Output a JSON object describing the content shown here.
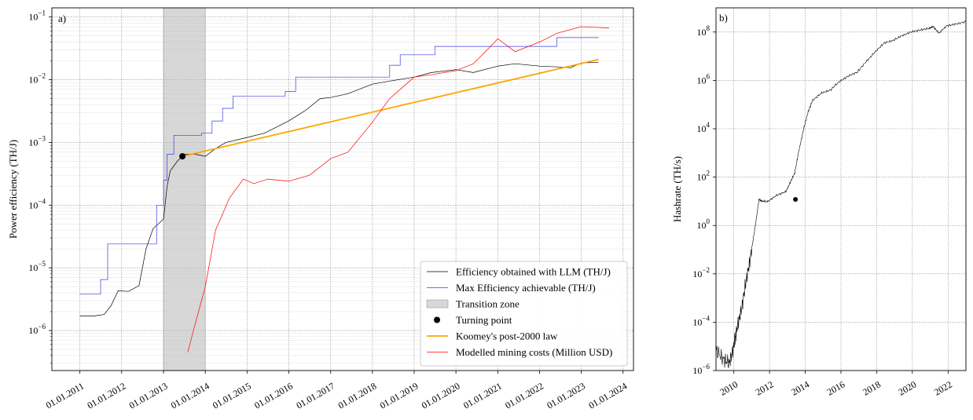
{
  "chart_data": [
    {
      "panel_label": "a)",
      "type": "line",
      "yscale": "log",
      "ylabel": "Power efficiency (TH/J)",
      "ylim": [
        2.3e-07,
        0.14
      ],
      "xlim": [
        "2010-05-01",
        "2024-04-01"
      ],
      "x_ticks": [
        "01.01.2011",
        "01.01.2012",
        "01.01.2013",
        "01.01.2014",
        "01.01.2015",
        "01.01.2016",
        "01.01.2017",
        "01.01.2018",
        "01.01.2019",
        "01.01.2020",
        "01.01.2021",
        "01.01.2022",
        "01.01.2023",
        "01.01.2024"
      ],
      "y_ticks": [
        {
          "value": 1e-06,
          "mantissa": "10",
          "exp": "−6"
        },
        {
          "value": 1e-05,
          "mantissa": "10",
          "exp": "−5"
        },
        {
          "value": 0.0001,
          "mantissa": "10",
          "exp": "−4"
        },
        {
          "value": 0.001,
          "mantissa": "10",
          "exp": "−3"
        },
        {
          "value": 0.01,
          "mantissa": "10",
          "exp": "−2"
        },
        {
          "value": 0.1,
          "mantissa": "10",
          "exp": "−1"
        }
      ],
      "grid": true,
      "transition_zone": [
        "2013-01-01",
        "2014-01-01"
      ],
      "turning_point": {
        "x": "2013-06-15",
        "y": 0.0006
      },
      "legend_position": "lower-right",
      "series": [
        {
          "name": "Efficiency obtained with LLM (TH/J)",
          "color": "#000000",
          "points": [
            [
              "2011-01-01",
              1.7e-06
            ],
            [
              "2011-05-01",
              1.7e-06
            ],
            [
              "2011-08-01",
              1.8e-06
            ],
            [
              "2011-10-01",
              2.5e-06
            ],
            [
              "2011-12-01",
              4.3e-06
            ],
            [
              "2012-03-01",
              4.2e-06
            ],
            [
              "2012-06-01",
              5.2e-06
            ],
            [
              "2012-08-01",
              2e-05
            ],
            [
              "2012-10-01",
              4.2e-05
            ],
            [
              "2013-01-01",
              6e-05
            ],
            [
              "2013-02-01",
              0.0002
            ],
            [
              "2013-03-01",
              0.00035
            ],
            [
              "2013-05-01",
              0.0005
            ],
            [
              "2013-07-01",
              0.00065
            ],
            [
              "2013-10-01",
              0.00065
            ],
            [
              "2014-01-01",
              0.0006
            ],
            [
              "2014-04-01",
              0.0008
            ],
            [
              "2014-07-01",
              0.001
            ],
            [
              "2015-01-01",
              0.0012
            ],
            [
              "2015-06-01",
              0.0014
            ],
            [
              "2016-01-01",
              0.0022
            ],
            [
              "2016-06-01",
              0.0033
            ],
            [
              "2016-10-01",
              0.005
            ],
            [
              "2017-01-01",
              0.0052
            ],
            [
              "2017-06-01",
              0.006
            ],
            [
              "2018-01-01",
              0.0085
            ],
            [
              "2018-06-01",
              0.0095
            ],
            [
              "2019-01-01",
              0.011
            ],
            [
              "2019-06-01",
              0.013
            ],
            [
              "2020-01-01",
              0.0145
            ],
            [
              "2020-06-01",
              0.013
            ],
            [
              "2021-01-01",
              0.0165
            ],
            [
              "2021-06-01",
              0.018
            ],
            [
              "2022-01-01",
              0.0165
            ],
            [
              "2022-06-01",
              0.016
            ],
            [
              "2022-10-01",
              0.0155
            ],
            [
              "2023-01-01",
              0.0185
            ],
            [
              "2023-06-01",
              0.019
            ]
          ]
        },
        {
          "name": "Max Efficiency achievable (TH/J)",
          "color": "#3b3be6",
          "step": true,
          "points": [
            [
              "2011-01-01",
              3.8e-06
            ],
            [
              "2011-07-01",
              6.5e-06
            ],
            [
              "2011-09-01",
              2.4e-05
            ],
            [
              "2012-11-01",
              0.0001
            ],
            [
              "2013-01-01",
              0.00025
            ],
            [
              "2013-02-01",
              0.00065
            ],
            [
              "2013-04-01",
              0.0013
            ],
            [
              "2013-12-01",
              0.0014
            ],
            [
              "2014-03-01",
              0.0022
            ],
            [
              "2014-06-01",
              0.0035
            ],
            [
              "2014-09-01",
              0.0055
            ],
            [
              "2015-12-01",
              0.0065
            ],
            [
              "2016-03-01",
              0.011
            ],
            [
              "2018-06-01",
              0.017
            ],
            [
              "2018-09-01",
              0.025
            ],
            [
              "2019-07-01",
              0.034
            ],
            [
              "2022-06-01",
              0.047
            ],
            [
              "2023-06-01",
              0.047
            ]
          ]
        },
        {
          "name": "Koomey's post-2000 law",
          "color": "#ffa500",
          "points": [
            [
              "2013-06-15",
              0.0006
            ],
            [
              "2023-06-01",
              0.021
            ]
          ]
        },
        {
          "name": "Modelled mining costs (Million USD)",
          "color": "#ff0000",
          "points": [
            [
              "2013-08-01",
              4.5e-07
            ],
            [
              "2013-10-01",
              1.2e-06
            ],
            [
              "2014-01-01",
              5e-06
            ],
            [
              "2014-04-01",
              4e-05
            ],
            [
              "2014-08-01",
              0.00013
            ],
            [
              "2014-12-01",
              0.00026
            ],
            [
              "2015-03-01",
              0.00022
            ],
            [
              "2015-07-01",
              0.00026
            ],
            [
              "2016-01-01",
              0.00024
            ],
            [
              "2016-07-01",
              0.0003
            ],
            [
              "2017-01-01",
              0.00055
            ],
            [
              "2017-06-01",
              0.0007
            ],
            [
              "2018-01-01",
              0.0021
            ],
            [
              "2018-06-01",
              0.005
            ],
            [
              "2019-01-01",
              0.011
            ],
            [
              "2019-06-01",
              0.012
            ],
            [
              "2020-01-01",
              0.014
            ],
            [
              "2020-06-01",
              0.018
            ],
            [
              "2020-10-01",
              0.03
            ],
            [
              "2021-01-01",
              0.045
            ],
            [
              "2021-06-01",
              0.028
            ],
            [
              "2022-01-01",
              0.04
            ],
            [
              "2022-06-01",
              0.055
            ],
            [
              "2023-01-01",
              0.07
            ],
            [
              "2023-09-01",
              0.067
            ]
          ]
        }
      ]
    },
    {
      "panel_label": "b)",
      "type": "line",
      "yscale": "log",
      "ylabel": "Hashrate (TH/s)",
      "ylim": [
        1e-06,
        1000000000.0
      ],
      "xlim": [
        "2009-01-01",
        "2023-01-01"
      ],
      "x_ticks": [
        "2010",
        "2012",
        "2014",
        "2016",
        "2018",
        "2020",
        "2022"
      ],
      "y_ticks": [
        {
          "value": 1e-06,
          "mantissa": "10",
          "exp": "−6"
        },
        {
          "value": 0.0001,
          "mantissa": "10",
          "exp": "−4"
        },
        {
          "value": 0.01,
          "mantissa": "10",
          "exp": "−2"
        },
        {
          "value": 1.0,
          "mantissa": "10",
          "exp": "0"
        },
        {
          "value": 100.0,
          "mantissa": "10",
          "exp": "2"
        },
        {
          "value": 10000.0,
          "mantissa": "10",
          "exp": "4"
        },
        {
          "value": 1000000.0,
          "mantissa": "10",
          "exp": "6"
        },
        {
          "value": 100000000.0,
          "mantissa": "10",
          "exp": "8"
        }
      ],
      "grid": true,
      "turning_point": {
        "x": "2013-06-15",
        "y": 12
      },
      "series": [
        {
          "name": "",
          "color": "#000000",
          "points": [
            [
              "2009-01-01",
              7e-06
            ],
            [
              "2009-06-01",
              3e-06
            ],
            [
              "2009-10-01",
              2e-06
            ],
            [
              "2010-01-01",
              1e-05
            ],
            [
              "2010-03-01",
              5e-05
            ],
            [
              "2010-06-01",
              0.0003
            ],
            [
              "2010-09-01",
              0.004
            ],
            [
              "2010-12-01",
              0.04
            ],
            [
              "2011-03-01",
              0.6
            ],
            [
              "2011-06-01",
              12
            ],
            [
              "2011-08-01",
              10
            ],
            [
              "2011-12-01",
              10
            ],
            [
              "2012-06-01",
              18
            ],
            [
              "2012-12-01",
              25
            ],
            [
              "2013-03-01",
              60
            ],
            [
              "2013-06-01",
              150
            ],
            [
              "2013-09-01",
              1500
            ],
            [
              "2013-12-01",
              10000
            ],
            [
              "2014-03-01",
              50000
            ],
            [
              "2014-06-01",
              150000
            ],
            [
              "2014-12-01",
              300000
            ],
            [
              "2015-06-01",
              400000
            ],
            [
              "2015-12-01",
              900000
            ],
            [
              "2016-06-01",
              1500000
            ],
            [
              "2016-12-01",
              2200000
            ],
            [
              "2017-06-01",
              6000000
            ],
            [
              "2017-12-01",
              15000000
            ],
            [
              "2018-06-01",
              35000000
            ],
            [
              "2018-12-01",
              45000000
            ],
            [
              "2019-06-01",
              70000000
            ],
            [
              "2019-12-01",
              100000000
            ],
            [
              "2020-06-01",
              120000000
            ],
            [
              "2020-12-01",
              140000000
            ],
            [
              "2021-03-01",
              170000000
            ],
            [
              "2021-07-01",
              90000000
            ],
            [
              "2021-12-01",
              180000000
            ],
            [
              "2022-06-01",
              210000000
            ],
            [
              "2023-01-01",
              270000000
            ]
          ]
        }
      ]
    }
  ]
}
